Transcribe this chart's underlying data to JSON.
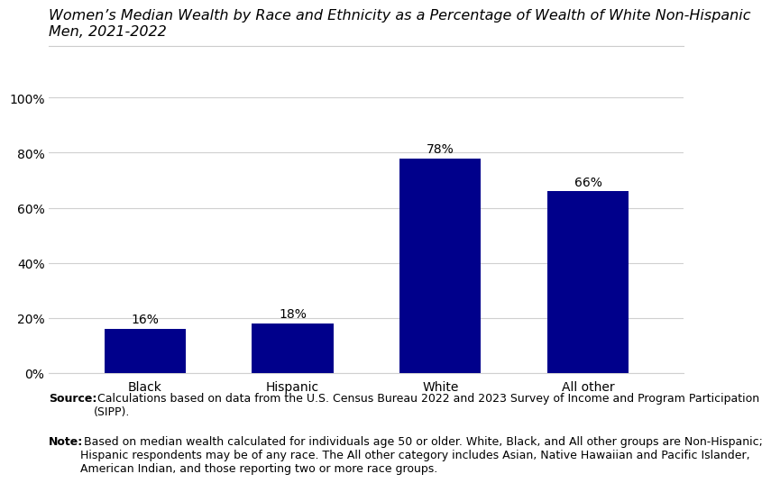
{
  "title_line1": "Women’s Median Wealth by Race and Ethnicity as a Percentage of Wealth of White Non-Hispanic",
  "title_line2": "Men, 2021-2022",
  "categories": [
    "Black",
    "Hispanic",
    "White",
    "All other"
  ],
  "values": [
    16,
    18,
    78,
    66
  ],
  "bar_color": "#00008B",
  "label_format": [
    "16%",
    "18%",
    "78%",
    "66%"
  ],
  "yticks": [
    0,
    20,
    40,
    60,
    80,
    100
  ],
  "ytick_labels": [
    "0%",
    "20%",
    "40%",
    "60%",
    "80%",
    "100%"
  ],
  "ylim": [
    0,
    106
  ],
  "source_bold": "Source:",
  "source_rest": " Calculations based on data from the U.S. Census Bureau 2022 and 2023 Survey of Income and Program Participation\n(SIPP).",
  "note_bold": "Note:",
  "note_rest": " Based on median wealth calculated for individuals age 50 or older. White, Black, and All other groups are Non-Hispanic;\nHispanic respondents may be of any race. The All other category includes Asian, Native Hawaiian and Pacific Islander,\nAmerican Indian, and those reporting two or more race groups.",
  "title_fontsize": 11.5,
  "bar_label_fontsize": 10,
  "tick_fontsize": 10,
  "note_fontsize": 9,
  "background_color": "#ffffff"
}
